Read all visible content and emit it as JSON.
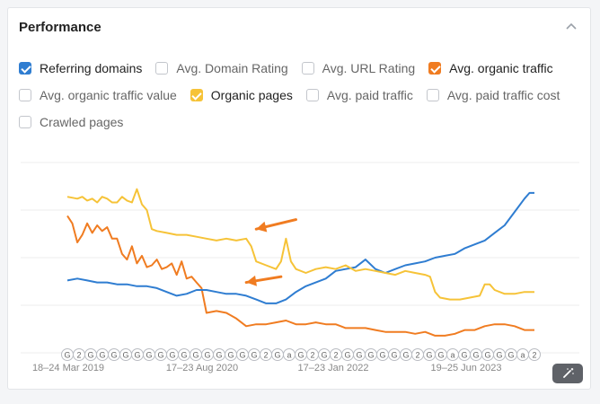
{
  "panel": {
    "title": "Performance",
    "collapse_icon": "chevron-up-icon",
    "magic_icon": "magic-wand-icon"
  },
  "filters": [
    {
      "label": "Referring domains",
      "checked": true,
      "color": "#2f7dd1"
    },
    {
      "label": "Avg. Domain Rating",
      "checked": false
    },
    {
      "label": "Avg. URL Rating",
      "checked": false
    },
    {
      "label": "Avg. organic traffic",
      "checked": true,
      "color": "#f07c21"
    },
    {
      "label": "Avg. organic traffic value",
      "checked": false
    },
    {
      "label": "Organic pages",
      "checked": true,
      "color": "#f6c338"
    },
    {
      "label": "Avg. paid traffic",
      "checked": false
    },
    {
      "label": "Avg. paid traffic cost",
      "checked": false
    },
    {
      "label": "Crawled pages",
      "checked": false
    }
  ],
  "chart_data": {
    "type": "line",
    "x_tick_labels": [
      "18–24 Mar 2019",
      "17–23 Aug 2020",
      "17–23 Jan 2022",
      "19–25 Jun 2023"
    ],
    "y_range": [
      0,
      100
    ],
    "grid": "horizontal",
    "series": [
      {
        "color": "#2f7dd1",
        "points": [
          [
            0,
            38
          ],
          [
            2,
            39
          ],
          [
            4,
            38
          ],
          [
            6,
            37
          ],
          [
            8,
            37
          ],
          [
            10,
            36
          ],
          [
            12,
            36
          ],
          [
            14,
            35
          ],
          [
            16,
            35
          ],
          [
            18,
            34
          ],
          [
            20,
            32
          ],
          [
            22,
            30
          ],
          [
            24,
            31
          ],
          [
            26,
            33
          ],
          [
            28,
            33
          ],
          [
            30,
            32
          ],
          [
            32,
            31
          ],
          [
            34,
            31
          ],
          [
            36,
            30
          ],
          [
            38,
            28
          ],
          [
            40,
            26
          ],
          [
            42,
            26
          ],
          [
            44,
            28
          ],
          [
            46,
            32
          ],
          [
            48,
            35
          ],
          [
            50,
            37
          ],
          [
            52,
            39
          ],
          [
            54,
            43
          ],
          [
            56,
            44
          ],
          [
            58,
            45
          ],
          [
            60,
            49
          ],
          [
            62,
            44
          ],
          [
            64,
            42
          ],
          [
            66,
            44
          ],
          [
            68,
            46
          ],
          [
            70,
            47
          ],
          [
            72,
            48
          ],
          [
            74,
            50
          ],
          [
            76,
            51
          ],
          [
            78,
            52
          ],
          [
            80,
            55
          ],
          [
            82,
            57
          ],
          [
            84,
            59
          ],
          [
            86,
            63
          ],
          [
            88,
            67
          ],
          [
            90,
            74
          ],
          [
            92,
            81
          ],
          [
            93,
            84
          ],
          [
            94,
            84
          ]
        ]
      },
      {
        "color": "#f07c21",
        "points": [
          [
            0,
            72
          ],
          [
            1,
            68
          ],
          [
            2,
            58
          ],
          [
            3,
            62
          ],
          [
            4,
            68
          ],
          [
            5,
            63
          ],
          [
            6,
            67
          ],
          [
            7,
            64
          ],
          [
            8,
            66
          ],
          [
            9,
            60
          ],
          [
            10,
            60
          ],
          [
            11,
            52
          ],
          [
            12,
            49
          ],
          [
            13,
            56
          ],
          [
            14,
            47
          ],
          [
            15,
            51
          ],
          [
            16,
            45
          ],
          [
            17,
            46
          ],
          [
            18,
            49
          ],
          [
            19,
            44
          ],
          [
            20,
            45
          ],
          [
            21,
            47
          ],
          [
            22,
            41
          ],
          [
            23,
            48
          ],
          [
            24,
            39
          ],
          [
            25,
            40
          ],
          [
            26,
            37
          ],
          [
            27,
            34
          ],
          [
            28,
            21
          ],
          [
            30,
            22
          ],
          [
            32,
            21
          ],
          [
            34,
            18
          ],
          [
            36,
            14
          ],
          [
            38,
            15
          ],
          [
            40,
            15
          ],
          [
            42,
            16
          ],
          [
            44,
            17
          ],
          [
            46,
            15
          ],
          [
            48,
            15
          ],
          [
            50,
            16
          ],
          [
            52,
            15
          ],
          [
            54,
            15
          ],
          [
            56,
            13
          ],
          [
            58,
            13
          ],
          [
            60,
            13
          ],
          [
            62,
            12
          ],
          [
            64,
            11
          ],
          [
            66,
            11
          ],
          [
            68,
            11
          ],
          [
            70,
            10
          ],
          [
            72,
            11
          ],
          [
            74,
            9
          ],
          [
            76,
            9
          ],
          [
            78,
            10
          ],
          [
            80,
            12
          ],
          [
            82,
            12
          ],
          [
            84,
            14
          ],
          [
            86,
            15
          ],
          [
            88,
            15
          ],
          [
            90,
            14
          ],
          [
            92,
            12
          ],
          [
            94,
            12
          ]
        ]
      },
      {
        "color": "#f6c338",
        "points": [
          [
            0,
            82
          ],
          [
            2,
            81
          ],
          [
            3,
            82
          ],
          [
            4,
            80
          ],
          [
            5,
            81
          ],
          [
            6,
            79
          ],
          [
            7,
            82
          ],
          [
            8,
            81
          ],
          [
            9,
            79
          ],
          [
            10,
            79
          ],
          [
            11,
            82
          ],
          [
            12,
            80
          ],
          [
            13,
            79
          ],
          [
            14,
            86
          ],
          [
            15,
            78
          ],
          [
            16,
            75
          ],
          [
            17,
            65
          ],
          [
            18,
            64
          ],
          [
            20,
            63
          ],
          [
            22,
            62
          ],
          [
            24,
            62
          ],
          [
            26,
            61
          ],
          [
            28,
            60
          ],
          [
            30,
            59
          ],
          [
            32,
            60
          ],
          [
            34,
            59
          ],
          [
            36,
            60
          ],
          [
            37,
            56
          ],
          [
            38,
            48
          ],
          [
            40,
            46
          ],
          [
            42,
            44
          ],
          [
            43,
            48
          ],
          [
            44,
            60
          ],
          [
            45,
            48
          ],
          [
            46,
            44
          ],
          [
            48,
            42
          ],
          [
            50,
            44
          ],
          [
            52,
            45
          ],
          [
            54,
            44
          ],
          [
            56,
            46
          ],
          [
            58,
            43
          ],
          [
            60,
            44
          ],
          [
            62,
            43
          ],
          [
            64,
            42
          ],
          [
            66,
            41
          ],
          [
            68,
            43
          ],
          [
            70,
            42
          ],
          [
            72,
            41
          ],
          [
            73,
            40
          ],
          [
            74,
            32
          ],
          [
            75,
            29
          ],
          [
            77,
            28
          ],
          [
            79,
            28
          ],
          [
            81,
            29
          ],
          [
            83,
            30
          ],
          [
            84,
            36
          ],
          [
            85,
            36
          ],
          [
            86,
            33
          ],
          [
            88,
            31
          ],
          [
            90,
            31
          ],
          [
            92,
            32
          ],
          [
            94,
            32
          ]
        ]
      }
    ],
    "annotations": [
      {
        "type": "arrow",
        "color": "#f07c21",
        "from": [
          46,
          70
        ],
        "to": [
          38,
          65
        ]
      },
      {
        "type": "arrow",
        "color": "#f07c21",
        "from": [
          43,
          40
        ],
        "to": [
          36,
          37
        ]
      }
    ],
    "event_markers": [
      "G",
      "2",
      "G",
      "G",
      "G",
      "G",
      "G",
      "G",
      "G",
      "G",
      "G",
      "G",
      "G",
      "G",
      "G",
      "G",
      "G",
      "2",
      "G",
      "a",
      "G",
      "2",
      "G",
      "2",
      "G",
      "G",
      "G",
      "G",
      "G",
      "G",
      "2",
      "G",
      "G",
      "a",
      "G",
      "G",
      "G",
      "G",
      "G",
      "a",
      "2"
    ]
  }
}
